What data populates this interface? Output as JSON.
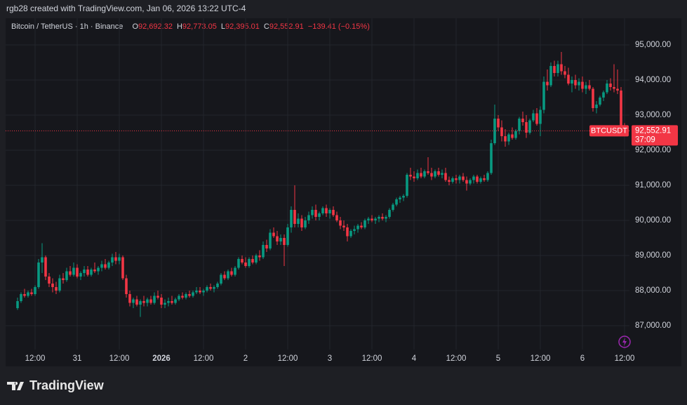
{
  "chart_data": {
    "type": "candlestick",
    "header": "rgb28 created with TradingView.com, Jan 06, 2026 13:22 UTC-4",
    "legend": {
      "symbol": "Bitcoin / TetherUS · 1h · Binance",
      "items": [
        {
          "key": "O",
          "value": "92,692.32"
        },
        {
          "key": "H",
          "value": "92,773.05"
        },
        {
          "key": "L",
          "value": "92,395.01"
        },
        {
          "key": "C",
          "value": "92,552.91"
        }
      ],
      "change": "−139.41 (−0.15%)"
    },
    "price_tag": {
      "symbol": "BTCUSDT",
      "price": "92,552.91",
      "countdown": "37:09"
    },
    "watermark": "TradingView",
    "up_color": "#089981",
    "down_color": "#f23645",
    "grid": true,
    "ylim": [
      86320,
      95760
    ],
    "yticks": [
      {
        "value": 87000,
        "label": "87,000.00"
      },
      {
        "value": 88000,
        "label": "88,000.00"
      },
      {
        "value": 89000,
        "label": "89,000.00"
      },
      {
        "value": 90000,
        "label": "90,000.00"
      },
      {
        "value": 91000,
        "label": "91,000.00"
      },
      {
        "value": 92000,
        "label": "92,000.00"
      },
      {
        "value": 93000,
        "label": "93,000.00"
      },
      {
        "value": 94000,
        "label": "94,000.00"
      },
      {
        "value": 95000,
        "label": "95,000.00"
      }
    ],
    "categories": [
      null,
      null,
      null,
      null,
      null,
      "12:00",
      null,
      null,
      null,
      null,
      null,
      null,
      null,
      null,
      null,
      null,
      null,
      "31",
      null,
      null,
      null,
      null,
      null,
      null,
      null,
      null,
      null,
      null,
      null,
      "12:00",
      null,
      null,
      null,
      null,
      null,
      null,
      null,
      null,
      null,
      null,
      null,
      "2026",
      null,
      null,
      null,
      null,
      null,
      null,
      null,
      null,
      null,
      null,
      null,
      "12:00",
      null,
      null,
      null,
      null,
      null,
      null,
      null,
      null,
      null,
      null,
      null,
      "2",
      null,
      null,
      null,
      null,
      null,
      null,
      null,
      null,
      null,
      null,
      null,
      "12:00",
      null,
      null,
      null,
      null,
      null,
      null,
      null,
      null,
      null,
      null,
      null,
      "3",
      null,
      null,
      null,
      null,
      null,
      null,
      null,
      null,
      null,
      null,
      null,
      "12:00",
      null,
      null,
      null,
      null,
      null,
      null,
      null,
      null,
      null,
      null,
      null,
      "4",
      null,
      null,
      null,
      null,
      null,
      null,
      null,
      null,
      null,
      null,
      null,
      "12:00",
      null,
      null,
      null,
      null,
      null,
      null,
      null,
      null,
      null,
      null,
      null,
      "5",
      null,
      null,
      null,
      null,
      null,
      null,
      null,
      null,
      null,
      null,
      null,
      "12:00",
      null,
      null,
      null,
      null,
      null,
      null,
      null,
      null,
      null,
      null,
      null,
      "6",
      null,
      null,
      null,
      null,
      null,
      null,
      null,
      null,
      null,
      null,
      null,
      "12:00"
    ],
    "ohlc": [
      [
        87500,
        87800,
        87450,
        87700
      ],
      [
        87700,
        87950,
        87650,
        87900
      ],
      [
        87900,
        88050,
        87800,
        87850
      ],
      [
        87850,
        88000,
        87800,
        87950
      ],
      [
        87950,
        88050,
        87850,
        87900
      ],
      [
        87900,
        88150,
        87850,
        88100
      ],
      [
        88100,
        88900,
        88050,
        88800
      ],
      [
        88800,
        89350,
        88500,
        88950
      ],
      [
        88950,
        89000,
        88300,
        88400
      ],
      [
        88400,
        88500,
        88100,
        88200
      ],
      [
        88200,
        88350,
        87950,
        88100
      ],
      [
        88100,
        88250,
        87900,
        88000
      ],
      [
        88000,
        88450,
        87950,
        88350
      ],
      [
        88350,
        88500,
        88200,
        88300
      ],
      [
        88300,
        88650,
        88250,
        88550
      ],
      [
        88550,
        88700,
        88400,
        88450
      ],
      [
        88450,
        88800,
        88400,
        88650
      ],
      [
        88650,
        88750,
        88350,
        88400
      ],
      [
        88400,
        88550,
        88300,
        88500
      ],
      [
        88500,
        88700,
        88400,
        88600
      ],
      [
        88600,
        88700,
        88400,
        88450
      ],
      [
        88450,
        88650,
        88400,
        88600
      ],
      [
        88600,
        88800,
        88500,
        88550
      ],
      [
        88550,
        88700,
        88450,
        88650
      ],
      [
        88650,
        88850,
        88550,
        88750
      ],
      [
        88750,
        88900,
        88600,
        88650
      ],
      [
        88650,
        88850,
        88600,
        88800
      ],
      [
        88800,
        89050,
        88700,
        88950
      ],
      [
        88950,
        89100,
        88750,
        88850
      ],
      [
        88850,
        89050,
        88750,
        88950
      ],
      [
        88950,
        89000,
        88300,
        88350
      ],
      [
        88350,
        88450,
        87800,
        87900
      ],
      [
        87900,
        88000,
        87550,
        87650
      ],
      [
        87650,
        87800,
        87500,
        87750
      ],
      [
        87750,
        87850,
        87550,
        87600
      ],
      [
        87600,
        87750,
        87250,
        87700
      ],
      [
        87700,
        87850,
        87550,
        87650
      ],
      [
        87650,
        87800,
        87550,
        87750
      ],
      [
        87750,
        87850,
        87600,
        87650
      ],
      [
        87650,
        87950,
        87600,
        87850
      ],
      [
        87850,
        88000,
        87750,
        87800
      ],
      [
        87800,
        87900,
        87500,
        87600
      ],
      [
        87600,
        87750,
        87500,
        87650
      ],
      [
        87650,
        87800,
        87550,
        87700
      ],
      [
        87700,
        87850,
        87600,
        87650
      ],
      [
        87650,
        87800,
        87600,
        87750
      ],
      [
        87750,
        87900,
        87700,
        87850
      ],
      [
        87850,
        87950,
        87750,
        87800
      ],
      [
        87800,
        87950,
        87750,
        87900
      ],
      [
        87900,
        88000,
        87800,
        87850
      ],
      [
        87850,
        88000,
        87800,
        87950
      ],
      [
        87950,
        88100,
        87900,
        88000
      ],
      [
        88000,
        88100,
        87900,
        87950
      ],
      [
        87950,
        88050,
        87850,
        88000
      ],
      [
        88000,
        88150,
        87950,
        88100
      ],
      [
        88100,
        88200,
        88000,
        88050
      ],
      [
        88050,
        88150,
        87950,
        88100
      ],
      [
        88100,
        88250,
        88050,
        88200
      ],
      [
        88200,
        88500,
        88150,
        88450
      ],
      [
        88450,
        88550,
        88300,
        88350
      ],
      [
        88350,
        88600,
        88300,
        88550
      ],
      [
        88550,
        88650,
        88400,
        88450
      ],
      [
        88450,
        88700,
        88400,
        88650
      ],
      [
        88650,
        88950,
        88600,
        88900
      ],
      [
        88900,
        89000,
        88750,
        88800
      ],
      [
        88800,
        88950,
        88650,
        88700
      ],
      [
        88700,
        88950,
        88650,
        88900
      ],
      [
        88900,
        89000,
        88750,
        88800
      ],
      [
        88800,
        89050,
        88750,
        89000
      ],
      [
        89000,
        89150,
        88850,
        88950
      ],
      [
        88950,
        89400,
        88900,
        89300
      ],
      [
        89300,
        89450,
        89100,
        89200
      ],
      [
        89200,
        89750,
        89150,
        89650
      ],
      [
        89650,
        89800,
        89500,
        89550
      ],
      [
        89550,
        89700,
        89300,
        89400
      ],
      [
        89400,
        89600,
        89300,
        89500
      ],
      [
        89500,
        89600,
        88700,
        89300
      ],
      [
        89300,
        89900,
        89250,
        89800
      ],
      [
        89800,
        90400,
        89650,
        90300
      ],
      [
        90300,
        91000,
        89800,
        89900
      ],
      [
        89900,
        90200,
        89800,
        90050
      ],
      [
        90050,
        90150,
        89700,
        89800
      ],
      [
        89800,
        90100,
        89750,
        90000
      ],
      [
        90000,
        90250,
        89900,
        90150
      ],
      [
        90150,
        90400,
        90050,
        90300
      ],
      [
        90300,
        90450,
        90000,
        90100
      ],
      [
        90100,
        90250,
        90000,
        90200
      ],
      [
        90200,
        90400,
        90150,
        90350
      ],
      [
        90350,
        90450,
        90100,
        90200
      ],
      [
        90200,
        90350,
        90050,
        90300
      ],
      [
        90300,
        90400,
        90100,
        90150
      ],
      [
        90150,
        90250,
        89950,
        90000
      ],
      [
        90000,
        90100,
        89750,
        89850
      ],
      [
        89850,
        90000,
        89700,
        89800
      ],
      [
        89800,
        89900,
        89400,
        89550
      ],
      [
        89550,
        89750,
        89500,
        89700
      ],
      [
        89700,
        89850,
        89600,
        89750
      ],
      [
        89750,
        89900,
        89650,
        89850
      ],
      [
        89850,
        89950,
        89750,
        89800
      ],
      [
        89800,
        90050,
        89750,
        90000
      ],
      [
        90000,
        90100,
        89900,
        90050
      ],
      [
        90050,
        90150,
        89950,
        90000
      ],
      [
        90000,
        90100,
        89900,
        90050
      ],
      [
        90050,
        90150,
        89950,
        90100
      ],
      [
        90100,
        90200,
        90000,
        90050
      ],
      [
        90050,
        90150,
        89950,
        90100
      ],
      [
        90100,
        90350,
        90050,
        90300
      ],
      [
        90300,
        90500,
        90250,
        90450
      ],
      [
        90450,
        90650,
        90400,
        90600
      ],
      [
        90600,
        90700,
        90500,
        90650
      ],
      [
        90650,
        90750,
        90550,
        90700
      ],
      [
        90700,
        91350,
        90650,
        91300
      ],
      [
        91300,
        91500,
        91150,
        91250
      ],
      [
        91250,
        91400,
        91100,
        91200
      ],
      [
        91200,
        91450,
        91150,
        91350
      ],
      [
        91350,
        91500,
        91200,
        91250
      ],
      [
        91250,
        91450,
        91200,
        91400
      ],
      [
        91400,
        91800,
        91300,
        91350
      ],
      [
        91350,
        91500,
        91150,
        91250
      ],
      [
        91250,
        91450,
        91200,
        91400
      ],
      [
        91400,
        91500,
        91250,
        91300
      ],
      [
        91300,
        91450,
        91200,
        91350
      ],
      [
        91350,
        91500,
        91100,
        91150
      ],
      [
        91150,
        91250,
        91000,
        91100
      ],
      [
        91100,
        91250,
        91050,
        91200
      ],
      [
        91200,
        91300,
        91050,
        91150
      ],
      [
        91150,
        91300,
        91050,
        91250
      ],
      [
        91250,
        91350,
        91100,
        91150
      ],
      [
        91150,
        91250,
        90850,
        91050
      ],
      [
        91050,
        91200,
        91000,
        91150
      ],
      [
        91150,
        91300,
        91050,
        91250
      ],
      [
        91250,
        91300,
        91050,
        91100
      ],
      [
        91100,
        91250,
        91050,
        91200
      ],
      [
        91200,
        91300,
        91100,
        91150
      ],
      [
        91150,
        91400,
        91100,
        91350
      ],
      [
        91350,
        92300,
        91300,
        92200
      ],
      [
        92200,
        93300,
        92150,
        92900
      ],
      [
        92900,
        93000,
        92550,
        92650
      ],
      [
        92650,
        92850,
        92250,
        92400
      ],
      [
        92400,
        92600,
        92100,
        92250
      ],
      [
        92250,
        92500,
        92150,
        92450
      ],
      [
        92450,
        92650,
        92300,
        92350
      ],
      [
        92350,
        92600,
        92300,
        92550
      ],
      [
        92550,
        92950,
        92450,
        92900
      ],
      [
        92900,
        93100,
        92700,
        92800
      ],
      [
        92800,
        93000,
        92350,
        92500
      ],
      [
        92500,
        92900,
        92450,
        92850
      ],
      [
        92850,
        93150,
        92800,
        93050
      ],
      [
        93050,
        93200,
        92700,
        92750
      ],
      [
        92750,
        93250,
        92400,
        93150
      ],
      [
        93150,
        94100,
        93050,
        93950
      ],
      [
        93950,
        94300,
        93700,
        93850
      ],
      [
        93850,
        94500,
        93800,
        94400
      ],
      [
        94400,
        94550,
        94100,
        94200
      ],
      [
        94200,
        94550,
        94100,
        94450
      ],
      [
        94450,
        94800,
        94150,
        94250
      ],
      [
        94250,
        94400,
        94050,
        94150
      ],
      [
        94150,
        94350,
        93850,
        93900
      ],
      [
        93900,
        94100,
        93650,
        94000
      ],
      [
        94000,
        94150,
        93750,
        93850
      ],
      [
        93850,
        94050,
        93700,
        93950
      ],
      [
        93950,
        94100,
        93650,
        93750
      ],
      [
        93750,
        93950,
        93600,
        93850
      ],
      [
        93850,
        94000,
        93700,
        93750
      ],
      [
        93750,
        93800,
        93100,
        93200
      ],
      [
        93200,
        93400,
        93050,
        93300
      ],
      [
        93300,
        93550,
        93250,
        93500
      ],
      [
        93500,
        93700,
        93400,
        93650
      ],
      [
        93650,
        94000,
        93600,
        93900
      ],
      [
        93900,
        94050,
        93700,
        93800
      ],
      [
        93800,
        94450,
        93650,
        93750
      ],
      [
        93750,
        94300,
        93600,
        93700
      ],
      [
        93700,
        93800,
        92600,
        92692.32
      ],
      [
        92692.32,
        92773.05,
        92395.01,
        92552.91
      ]
    ]
  }
}
